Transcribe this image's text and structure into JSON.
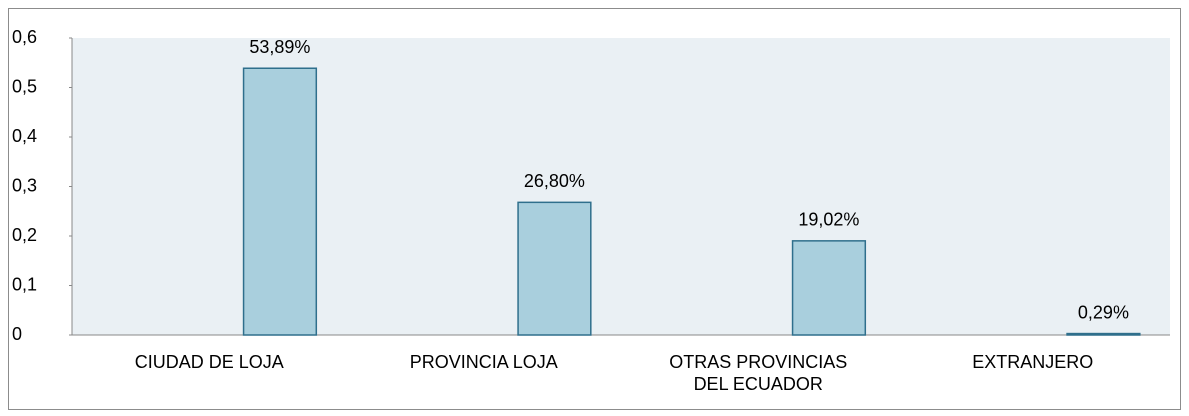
{
  "chart_data": {
    "type": "bar",
    "categories": [
      "CIUDAD DE LOJA",
      "PROVINCIA LOJA",
      "OTRAS PROVINCIAS DEL ECUADOR",
      "EXTRANJERO"
    ],
    "values": [
      0.5389,
      0.268,
      0.1902,
      0.0029
    ],
    "value_labels": [
      "53,89%",
      "26,80%",
      "19,02%",
      "0,29%"
    ],
    "color": "#a9cfdd",
    "ylim": [
      0,
      0.6
    ],
    "yticks": [
      0,
      {
        "value": 0.1,
        "label": "0,1"
      },
      {
        "value": 0.2,
        "label": "0,2"
      },
      {
        "value": 0.3,
        "label": "0,3"
      },
      {
        "value": 0.4,
        "label": "0,4"
      },
      {
        "value": 0.5,
        "label": "0,5"
      },
      {
        "value": 0.6,
        "label": "0,6"
      }
    ],
    "grid": false
  }
}
